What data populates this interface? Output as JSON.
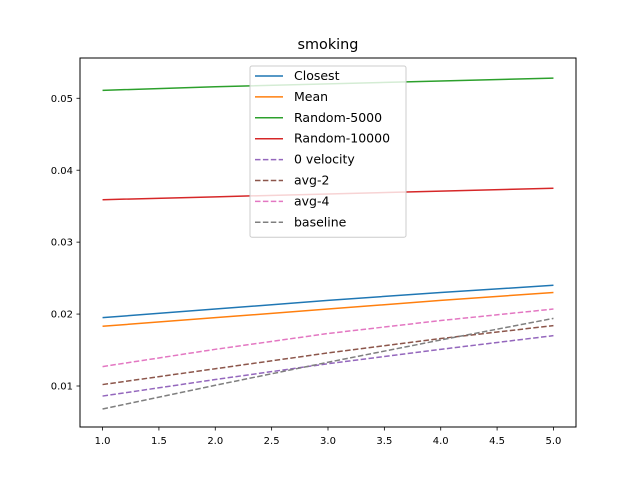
{
  "chart_data": {
    "type": "line",
    "title": "smoking",
    "xlabel": "",
    "ylabel": "",
    "xlim": [
      0.8,
      5.2
    ],
    "ylim": [
      0.0043,
      0.0556
    ],
    "x_ticks": [
      "1.0",
      "1.5",
      "2.0",
      "2.5",
      "3.0",
      "3.5",
      "4.0",
      "4.5",
      "5.0"
    ],
    "y_ticks": [
      "0.01",
      "0.02",
      "0.03",
      "0.04",
      "0.05"
    ],
    "grid": false,
    "legend_position": "upper center",
    "x": [
      1,
      2,
      3,
      4,
      5
    ],
    "series": [
      {
        "name": "Closest",
        "color": "#1f77b4",
        "style": "solid",
        "values": [
          0.0195,
          0.0207,
          0.0219,
          0.023,
          0.024
        ]
      },
      {
        "name": "Mean",
        "color": "#ff7f0e",
        "style": "solid",
        "values": [
          0.0183,
          0.0195,
          0.0207,
          0.0219,
          0.023
        ]
      },
      {
        "name": "Random-5000",
        "color": "#2ca02c",
        "style": "solid",
        "values": [
          0.0511,
          0.0516,
          0.052,
          0.0524,
          0.0528
        ]
      },
      {
        "name": "Random-10000",
        "color": "#d62728",
        "style": "solid",
        "values": [
          0.0359,
          0.0363,
          0.0367,
          0.0371,
          0.0375
        ]
      },
      {
        "name": "0 velocity",
        "color": "#9467bd",
        "style": "dashed",
        "values": [
          0.0086,
          0.0109,
          0.0131,
          0.0151,
          0.017
        ]
      },
      {
        "name": "avg-2",
        "color": "#8c564b",
        "style": "dashed",
        "values": [
          0.0102,
          0.0124,
          0.0146,
          0.0166,
          0.0184
        ]
      },
      {
        "name": "avg-4",
        "color": "#e377c2",
        "style": "dashed",
        "values": [
          0.0127,
          0.0151,
          0.0173,
          0.0191,
          0.0207
        ]
      },
      {
        "name": "baseline",
        "color": "#7f7f7f",
        "style": "dashed",
        "values": [
          0.0068,
          0.0101,
          0.0133,
          0.0164,
          0.0194
        ]
      }
    ]
  }
}
